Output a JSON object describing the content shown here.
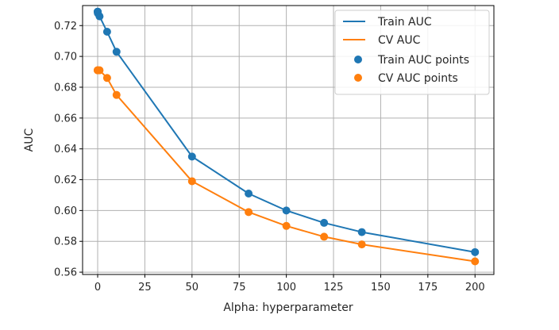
{
  "chart_data": {
    "type": "line",
    "title": "",
    "xlabel": "Alpha: hyperparameter",
    "ylabel": "AUC",
    "xlim": [
      -8,
      210
    ],
    "ylim": [
      0.5585,
      0.733
    ],
    "xticks": [
      0,
      25,
      50,
      75,
      100,
      125,
      150,
      175,
      200
    ],
    "yticks": [
      0.56,
      0.58,
      0.6,
      0.62,
      0.64,
      0.66,
      0.68,
      0.7,
      0.72
    ],
    "ytick_labels": [
      "0.56",
      "0.58",
      "0.60",
      "0.62",
      "0.64",
      "0.66",
      "0.68",
      "0.70",
      "0.72"
    ],
    "grid": true,
    "legend_position": "top-right",
    "x": [
      0.0001,
      0.001,
      0.01,
      0.1,
      1,
      5,
      10,
      50,
      80,
      100,
      120,
      140,
      200
    ],
    "series": [
      {
        "name": "Train AUC",
        "points_name": "Train AUC points",
        "color": "#1f77b4",
        "values": [
          0.729,
          0.729,
          0.729,
          0.728,
          0.726,
          0.716,
          0.703,
          0.635,
          0.611,
          0.6,
          0.592,
          0.586,
          0.573
        ]
      },
      {
        "name": "CV AUC",
        "points_name": "CV AUC points",
        "color": "#ff7f0e",
        "values": [
          0.691,
          0.691,
          0.691,
          0.691,
          0.691,
          0.686,
          0.675,
          0.619,
          0.599,
          0.59,
          0.583,
          0.578,
          0.567
        ]
      }
    ]
  }
}
